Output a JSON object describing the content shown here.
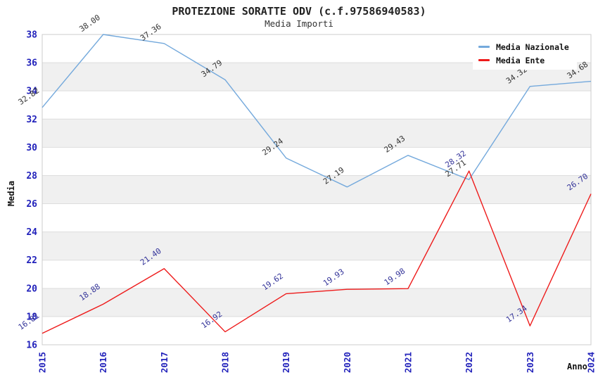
{
  "title": "PROTEZIONE SORATTE ODV (c.f.97586940583)",
  "subtitle": "Media Importi",
  "colors": {
    "axis_tick_label": "#2222bb",
    "grid_line": "#dddddd",
    "plot_border": "#cccccc",
    "band_gray": "#f0f0f0",
    "band_white": "#ffffff"
  },
  "chart_data": {
    "type": "line",
    "title": "PROTEZIONE SORATTE ODV (c.f.97586940583)",
    "subtitle": "Media Importi",
    "xlabel": "Anno",
    "ylabel": "Media",
    "x": [
      2015,
      2016,
      2017,
      2018,
      2019,
      2020,
      2021,
      2022,
      2023,
      2024
    ],
    "ylim": [
      16,
      38
    ],
    "ytick_step": 2,
    "grid": "horizontal-bands-alternating",
    "legend_position": "top-right",
    "series": [
      {
        "name": "Media Nazionale",
        "color": "#74a9dc",
        "label_color": "#333333",
        "values": [
          32.82,
          38.0,
          37.36,
          34.79,
          29.24,
          27.19,
          29.43,
          27.71,
          34.32,
          34.68
        ]
      },
      {
        "name": "Media Ente",
        "color": "#ee1b1b",
        "label_color": "#333399",
        "values": [
          16.81,
          18.88,
          21.4,
          16.92,
          19.62,
          19.93,
          19.98,
          28.32,
          17.34,
          26.7
        ]
      }
    ]
  }
}
